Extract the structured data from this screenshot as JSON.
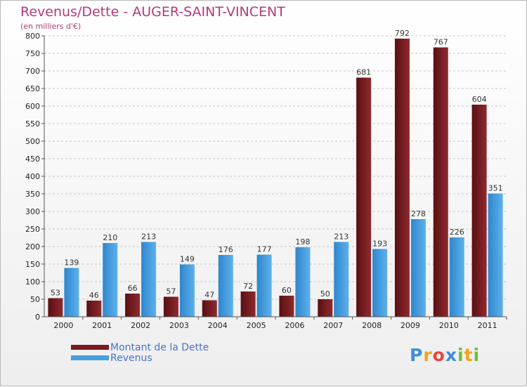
{
  "header": {
    "title": "Revenus/Dette - AUGER-SAINT-VINCENT",
    "subtitle": "(en milliers d'€)"
  },
  "logo": {
    "text": "Proxiti",
    "letters": [
      "P",
      "r",
      "o",
      "x",
      "i",
      "t",
      "i"
    ],
    "colors": [
      "#3d8fd6",
      "#f3a31b",
      "#e8463c",
      "#3d8fd6",
      "#6cbf3a",
      "#f3a31b",
      "#6cbf3a"
    ]
  },
  "colors": {
    "dette": "#7a1a1f",
    "revenus": "#4a9fe0",
    "grid": "#c8c8c8",
    "axis": "#555555"
  },
  "chart_data": {
    "type": "bar",
    "title": "Revenus/Dette - AUGER-SAINT-VINCENT",
    "subtitle": "(en milliers d'€)",
    "categories": [
      "2000",
      "2001",
      "2002",
      "2003",
      "2004",
      "2005",
      "2006",
      "2007",
      "2008",
      "2009",
      "2010",
      "2011"
    ],
    "series": [
      {
        "name": "Montant de la Dette",
        "values": [
          53,
          46,
          66,
          57,
          47,
          72,
          60,
          50,
          681,
          792,
          767,
          604
        ]
      },
      {
        "name": "Revenus",
        "values": [
          139,
          210,
          213,
          149,
          176,
          177,
          198,
          213,
          193,
          278,
          226,
          351
        ]
      }
    ],
    "ylim": [
      0,
      800
    ],
    "yticks": [
      0,
      50,
      100,
      150,
      200,
      250,
      300,
      350,
      400,
      450,
      500,
      550,
      600,
      650,
      700,
      750,
      800
    ],
    "grid": true,
    "legend_position": "bottom-left"
  }
}
